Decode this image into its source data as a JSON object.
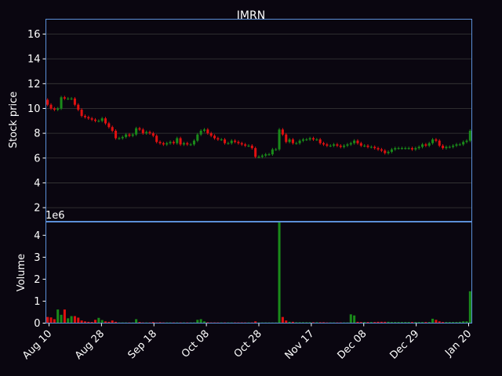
{
  "chart_data": [
    {
      "type": "candlestick",
      "title": "IMRN",
      "ylabel": "Stock price",
      "ylim": [
        0.9,
        17.2
      ],
      "yticks": [
        2,
        4,
        6,
        8,
        10,
        12,
        14,
        16
      ],
      "grid": true,
      "up_color": "#1a8a1a",
      "down_color": "#e01010",
      "frame_color": "#5b8fd8",
      "background": "#0a0610",
      "x_tick_labels": [
        "Aug 10",
        "Aug 28",
        "Sep 18",
        "Oct 08",
        "Oct 28",
        "Nov 17",
        "Dec 08",
        "Dec 29",
        "Jan 20"
      ],
      "close": [
        10.3,
        10.0,
        9.9,
        10.0,
        10.9,
        10.8,
        10.8,
        10.8,
        10.3,
        9.9,
        9.4,
        9.3,
        9.2,
        9.1,
        9.0,
        9.0,
        9.2,
        8.8,
        8.5,
        8.2,
        7.6,
        7.6,
        7.7,
        7.9,
        7.8,
        7.9,
        8.4,
        8.3,
        8.0,
        8.1,
        8.0,
        7.8,
        7.3,
        7.2,
        7.1,
        7.2,
        7.3,
        7.2,
        7.6,
        7.1,
        7.2,
        7.1,
        7.1,
        7.4,
        7.9,
        8.2,
        8.3,
        8.0,
        7.8,
        7.6,
        7.5,
        7.5,
        7.2,
        7.2,
        7.4,
        7.3,
        7.2,
        7.1,
        7.0,
        7.0,
        6.8,
        6.1,
        6.1,
        6.2,
        6.3,
        6.3,
        6.7,
        6.7,
        8.3,
        7.9,
        7.3,
        7.5,
        7.2,
        7.2,
        7.4,
        7.5,
        7.5,
        7.6,
        7.5,
        7.5,
        7.2,
        7.1,
        7.0,
        7.0,
        7.1,
        7.0,
        6.9,
        7.0,
        7.1,
        7.2,
        7.4,
        7.2,
        7.0,
        7.0,
        6.9,
        6.9,
        6.8,
        6.7,
        6.6,
        6.4,
        6.5,
        6.7,
        6.8,
        6.8,
        6.8,
        6.8,
        6.8,
        6.7,
        6.8,
        6.9,
        7.1,
        7.0,
        7.2,
        7.5,
        7.4,
        7.0,
        6.8,
        6.9,
        6.9,
        7.0,
        7.1,
        7.1,
        7.3,
        7.4,
        8.2
      ],
      "volume_panel": {
        "ylabel": "Volume",
        "offset_text": "1e6",
        "ylim": [
          0,
          4.6
        ],
        "yticks": [
          0,
          1,
          2,
          3,
          4
        ],
        "values": [
          0.28,
          0.26,
          0.18,
          0.62,
          0.38,
          0.62,
          0.22,
          0.32,
          0.32,
          0.25,
          0.12,
          0.08,
          0.06,
          0.05,
          0.15,
          0.24,
          0.14,
          0.08,
          0.06,
          0.12,
          0.06,
          0.03,
          0.03,
          0.03,
          0.03,
          0.03,
          0.18,
          0.05,
          0.03,
          0.03,
          0.03,
          0.05,
          0.03,
          0.04,
          0.03,
          0.03,
          0.03,
          0.03,
          0.03,
          0.03,
          0.03,
          0.03,
          0.03,
          0.03,
          0.15,
          0.18,
          0.08,
          0.04,
          0.03,
          0.03,
          0.03,
          0.03,
          0.03,
          0.03,
          0.03,
          0.03,
          0.03,
          0.03,
          0.03,
          0.03,
          0.03,
          0.08,
          0.03,
          0.03,
          0.03,
          0.03,
          0.03,
          0.03,
          4.6,
          0.28,
          0.12,
          0.06,
          0.06,
          0.04,
          0.04,
          0.04,
          0.04,
          0.04,
          0.04,
          0.04,
          0.04,
          0.04,
          0.03,
          0.03,
          0.03,
          0.03,
          0.03,
          0.03,
          0.03,
          0.4,
          0.35,
          0.06,
          0.05,
          0.05,
          0.05,
          0.05,
          0.05,
          0.06,
          0.06,
          0.06,
          0.06,
          0.05,
          0.05,
          0.05,
          0.05,
          0.05,
          0.05,
          0.05,
          0.05,
          0.05,
          0.05,
          0.05,
          0.05,
          0.2,
          0.15,
          0.08,
          0.05,
          0.05,
          0.05,
          0.05,
          0.05,
          0.06,
          0.08,
          0.08,
          1.45
        ]
      }
    }
  ]
}
